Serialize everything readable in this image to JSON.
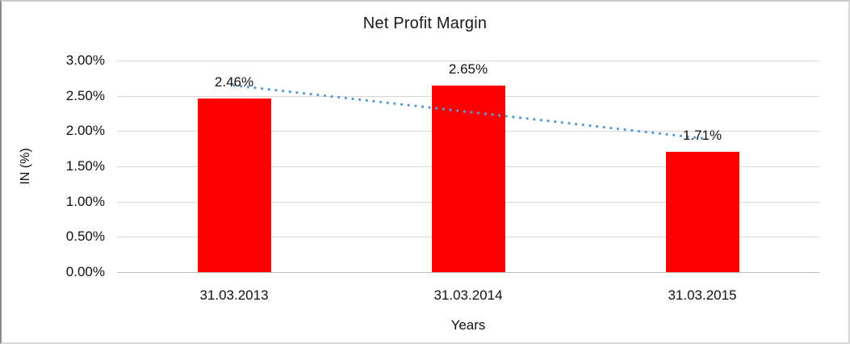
{
  "chart_data": {
    "type": "bar",
    "title": "Net Profit Margin",
    "xlabel": "Years",
    "ylabel": "IN (%)",
    "categories": [
      "31.03.2013",
      "31.03.2014",
      "31.03.2015"
    ],
    "values": [
      2.46,
      2.65,
      1.71
    ],
    "data_labels": [
      "2.46%",
      "2.65%",
      "1.71%"
    ],
    "ylim": [
      0,
      3
    ],
    "ytick_values": [
      0,
      0.5,
      1,
      1.5,
      2,
      2.5,
      3
    ],
    "ytick_labels": [
      "0.00%",
      "0.50%",
      "1.00%",
      "1.50%",
      "2.00%",
      "2.50%",
      "3.00%"
    ],
    "grid": true,
    "legend_position": "none",
    "bar_color": "#FF0000",
    "trendline": {
      "type": "linear",
      "style": "dotted",
      "color": "#5B9BD5",
      "start_value": 2.647,
      "end_value": 1.897
    }
  },
  "colors": {
    "gridline": "#D9D9D9",
    "axis_line": "#C0C0C0",
    "text": "#111111",
    "background": "#FFFFFF"
  }
}
